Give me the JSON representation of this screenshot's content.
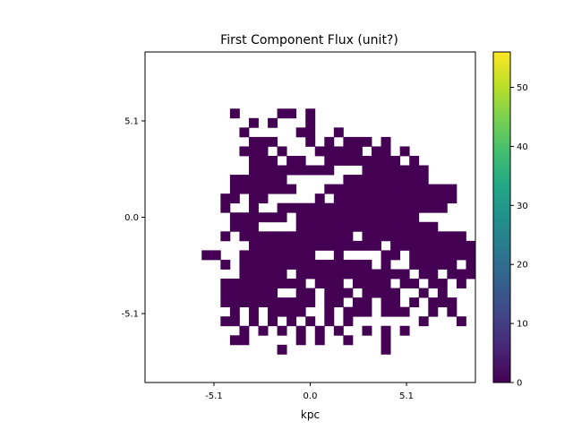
{
  "chart_data": {
    "type": "heatmap",
    "title": "First Component Flux (unit?)",
    "xlabel": "kpc",
    "ylabel": "",
    "xlim": [
      -8.75,
      8.75
    ],
    "ylim": [
      -8.75,
      8.75
    ],
    "x_ticks": [
      {
        "value": -5.1,
        "label": "-5.1"
      },
      {
        "value": 0.0,
        "label": "0.0"
      },
      {
        "value": 5.1,
        "label": "5.1"
      }
    ],
    "y_ticks": [
      {
        "value": -5.1,
        "label": "-5.1"
      },
      {
        "value": 0.0,
        "label": "0.0"
      },
      {
        "value": 5.1,
        "label": "5.1"
      }
    ],
    "colorbar": {
      "colormap": "viridis",
      "range": [
        0,
        56
      ],
      "ticks": [
        {
          "value": 0,
          "label": "0"
        },
        {
          "value": 10,
          "label": "10"
        },
        {
          "value": 20,
          "label": "20"
        },
        {
          "value": 30,
          "label": "30"
        },
        {
          "value": 40,
          "label": "40"
        },
        {
          "value": 50,
          "label": "50"
        }
      ]
    },
    "pixel_grid": {
      "n_x": 35,
      "n_y": 35,
      "pixel_size_kpc": 0.5,
      "origin_kpc": [
        -8.75,
        8.75
      ],
      "fill_value": 0.5,
      "fill_color": "#440154",
      "legend": "# = pixel with flux near 0 (dark purple); . = no data; rows from top",
      "rows": [
        "...................................",
        "...................................",
        "...................................",
        "...................................",
        "...................................",
        "...................................",
        ".........#....##.#.................",
        "...........#.#...#.................",
        "..........#.....##..#..............",
        "...........###...#.#.###.#.........",
        "..........###.#...#####.##.#.......",
        "...........###.##..########.#......",
        "...........#########...#######.....",
        ".........######......#########.....",
        ".........#######...##############..",
        "........##.##.....#.#############..",
        "........#..#..##################...",
        ".........######.#############......",
        ".........###....###############....",
        "........#.############.###########.",
        "...........##############.#########",
        "......##..########..#....##.#######",
        "........#.##############.#..#####.#",
        "..........#####.############.##.###",
        "........#########.###.####.##.##.#.",
        "........######..##.###.####..#.#...",
        "........##########.##.##.##.#.###..",
        ".........#.#.####..#.###.###..#.#..",
        "........##.#.#.#.#.#.#.......#...#.",
        "..........#.#.#.#.#.#..#.#.#.......",
        ".........##.....#.#..#...#.........",
        "..............#..........#.........",
        "...................................",
        "...................................",
        "..................................."
      ]
    }
  }
}
